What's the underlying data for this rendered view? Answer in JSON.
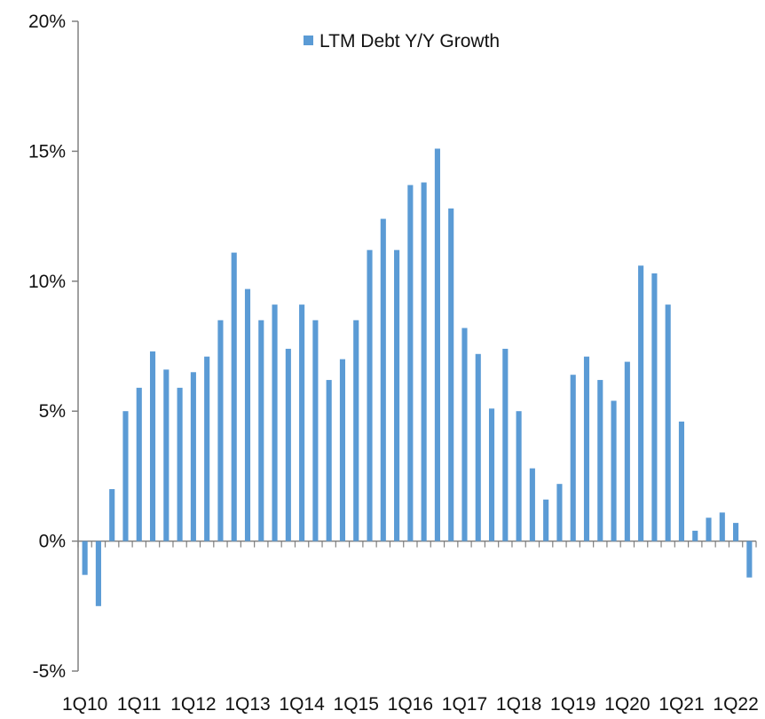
{
  "chart_data": {
    "type": "bar",
    "legend": {
      "label": "LTM Debt Y/Y Growth",
      "placement": "top-center"
    },
    "series": [
      {
        "name": "LTM Debt Y/Y Growth",
        "color": "#5b9bd5",
        "values": [
          -1.3,
          -2.5,
          2.0,
          5.0,
          5.9,
          7.3,
          6.6,
          5.9,
          6.5,
          7.1,
          8.5,
          11.1,
          9.7,
          8.5,
          9.1,
          7.4,
          9.1,
          8.5,
          6.2,
          7.0,
          8.5,
          11.2,
          12.4,
          11.2,
          13.7,
          13.8,
          15.1,
          12.8,
          8.2,
          7.2,
          5.1,
          7.4,
          5.0,
          2.8,
          1.6,
          2.2,
          6.4,
          7.1,
          6.2,
          5.4,
          6.9,
          10.6,
          10.3,
          9.1,
          4.6,
          0.4,
          0.9,
          1.1,
          0.7,
          -1.4
        ]
      }
    ],
    "categories": [
      "1Q10",
      "2Q10",
      "3Q10",
      "4Q10",
      "1Q11",
      "2Q11",
      "3Q11",
      "4Q11",
      "1Q12",
      "2Q12",
      "3Q12",
      "4Q12",
      "1Q13",
      "2Q13",
      "3Q13",
      "4Q13",
      "1Q14",
      "2Q14",
      "3Q14",
      "4Q14",
      "1Q15",
      "2Q15",
      "3Q15",
      "4Q15",
      "1Q16",
      "2Q16",
      "3Q16",
      "4Q16",
      "1Q17",
      "2Q17",
      "3Q17",
      "4Q17",
      "1Q18",
      "2Q18",
      "3Q18",
      "4Q18",
      "1Q19",
      "2Q19",
      "3Q19",
      "4Q19",
      "1Q20",
      "2Q20",
      "3Q20",
      "4Q20",
      "1Q21",
      "2Q21",
      "3Q21",
      "4Q21",
      "1Q22",
      "2Q22"
    ],
    "x_tick_labels": [
      "1Q10",
      "1Q11",
      "1Q12",
      "1Q13",
      "1Q14",
      "1Q15",
      "1Q16",
      "1Q17",
      "1Q18",
      "1Q19",
      "1Q20",
      "1Q21",
      "1Q22"
    ],
    "y_ticks": [
      "-5%",
      "0%",
      "5%",
      "10%",
      "15%",
      "20%"
    ],
    "ylim": [
      -5,
      20
    ],
    "grid": false
  }
}
